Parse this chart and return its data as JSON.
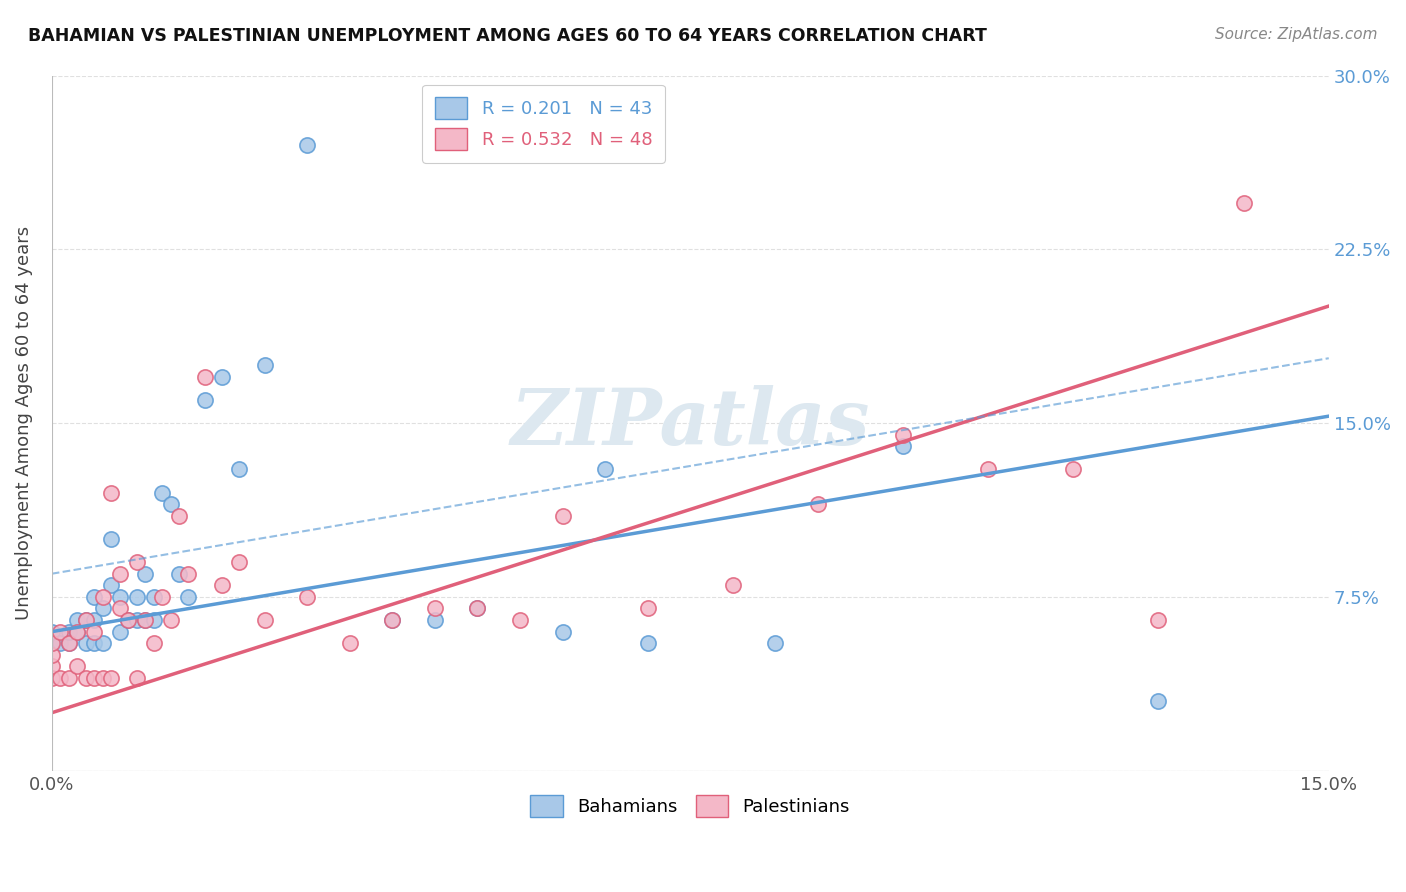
{
  "title": "BAHAMIAN VS PALESTINIAN UNEMPLOYMENT AMONG AGES 60 TO 64 YEARS CORRELATION CHART",
  "source": "Source: ZipAtlas.com",
  "ylabel": "Unemployment Among Ages 60 to 64 years",
  "xlim": [
    0,
    0.15
  ],
  "ylim": [
    0,
    0.3
  ],
  "bahamian_color": "#a8c8e8",
  "bahamian_edge_color": "#5b9bd5",
  "palestinian_color": "#f4b8c8",
  "palestinian_edge_color": "#e0607a",
  "bahamian_line_color": "#5b9bd5",
  "palestinian_line_color": "#e0607a",
  "R_bahamian": 0.201,
  "N_bahamian": 43,
  "R_palestinian": 0.532,
  "N_palestinian": 48,
  "bahamian_x": [
    0.0,
    0.0,
    0.001,
    0.002,
    0.002,
    0.003,
    0.003,
    0.004,
    0.004,
    0.005,
    0.005,
    0.005,
    0.006,
    0.006,
    0.007,
    0.007,
    0.008,
    0.008,
    0.009,
    0.01,
    0.01,
    0.011,
    0.011,
    0.012,
    0.012,
    0.013,
    0.014,
    0.015,
    0.016,
    0.018,
    0.02,
    0.022,
    0.025,
    0.03,
    0.04,
    0.045,
    0.05,
    0.06,
    0.065,
    0.07,
    0.085,
    0.1,
    0.13
  ],
  "bahamian_y": [
    0.055,
    0.06,
    0.055,
    0.055,
    0.06,
    0.06,
    0.065,
    0.055,
    0.065,
    0.055,
    0.065,
    0.075,
    0.055,
    0.07,
    0.08,
    0.1,
    0.06,
    0.075,
    0.065,
    0.065,
    0.075,
    0.065,
    0.085,
    0.065,
    0.075,
    0.12,
    0.115,
    0.085,
    0.075,
    0.16,
    0.17,
    0.13,
    0.175,
    0.27,
    0.065,
    0.065,
    0.07,
    0.06,
    0.13,
    0.055,
    0.055,
    0.14,
    0.03
  ],
  "palestinian_x": [
    0.0,
    0.0,
    0.0,
    0.0,
    0.001,
    0.001,
    0.002,
    0.002,
    0.003,
    0.003,
    0.004,
    0.004,
    0.005,
    0.005,
    0.006,
    0.006,
    0.007,
    0.007,
    0.008,
    0.008,
    0.009,
    0.01,
    0.01,
    0.011,
    0.012,
    0.013,
    0.014,
    0.015,
    0.016,
    0.018,
    0.02,
    0.022,
    0.025,
    0.03,
    0.035,
    0.04,
    0.045,
    0.05,
    0.055,
    0.06,
    0.07,
    0.08,
    0.09,
    0.1,
    0.11,
    0.12,
    0.13,
    0.14
  ],
  "palestinian_y": [
    0.04,
    0.045,
    0.05,
    0.055,
    0.04,
    0.06,
    0.04,
    0.055,
    0.045,
    0.06,
    0.04,
    0.065,
    0.04,
    0.06,
    0.04,
    0.075,
    0.04,
    0.12,
    0.07,
    0.085,
    0.065,
    0.04,
    0.09,
    0.065,
    0.055,
    0.075,
    0.065,
    0.11,
    0.085,
    0.17,
    0.08,
    0.09,
    0.065,
    0.075,
    0.055,
    0.065,
    0.07,
    0.07,
    0.065,
    0.11,
    0.07,
    0.08,
    0.115,
    0.145,
    0.13,
    0.13,
    0.065,
    0.245
  ],
  "background_color": "#ffffff",
  "grid_color": "#e0e0e0",
  "watermark_text": "ZIPatlas",
  "watermark_color": "#dde8f0"
}
